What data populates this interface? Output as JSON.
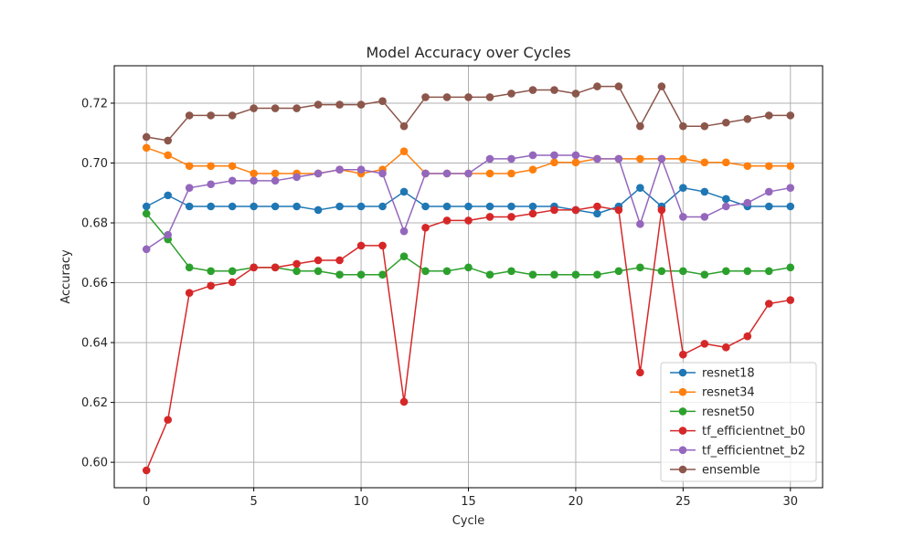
{
  "chart_data": {
    "type": "line",
    "title": "Model Accuracy over Cycles",
    "xlabel": "Cycle",
    "ylabel": "Accuracy",
    "xlim": [
      -1.5,
      31.5
    ],
    "ylim": [
      0.5915,
      0.7325
    ],
    "xticks": [
      0,
      5,
      10,
      15,
      20,
      25,
      30
    ],
    "yticks": [
      0.6,
      0.62,
      0.64,
      0.66,
      0.68,
      0.7,
      0.72
    ],
    "ytick_labels": [
      "0.60",
      "0.62",
      "0.64",
      "0.66",
      "0.68",
      "0.70",
      "0.72"
    ],
    "grid": true,
    "legend_position": "lower-right",
    "x": [
      0,
      1,
      2,
      3,
      4,
      5,
      6,
      7,
      8,
      9,
      10,
      11,
      12,
      13,
      14,
      15,
      16,
      17,
      18,
      19,
      20,
      21,
      22,
      23,
      24,
      25,
      26,
      27,
      28,
      29,
      30
    ],
    "series": [
      {
        "name": "resnet18",
        "color": "#1f77b4",
        "values": [
          0.6855,
          0.6892,
          0.6855,
          0.6855,
          0.6855,
          0.6855,
          0.6855,
          0.6855,
          0.6843,
          0.6855,
          0.6855,
          0.6855,
          0.6904,
          0.6855,
          0.6855,
          0.6855,
          0.6855,
          0.6855,
          0.6855,
          0.6855,
          0.6843,
          0.6831,
          0.6855,
          0.6917,
          0.6855,
          0.6917,
          0.6904,
          0.688,
          0.6855,
          0.6855,
          0.6855
        ]
      },
      {
        "name": "resnet34",
        "color": "#ff7f0e",
        "values": [
          0.7051,
          0.7026,
          0.699,
          0.699,
          0.699,
          0.6965,
          0.6965,
          0.6965,
          0.6965,
          0.6978,
          0.6965,
          0.6978,
          0.7039,
          0.6965,
          0.6965,
          0.6965,
          0.6965,
          0.6965,
          0.6978,
          0.7002,
          0.7002,
          0.7014,
          0.7014,
          0.7014,
          0.7014,
          0.7014,
          0.7002,
          0.7002,
          0.699,
          0.699,
          0.699
        ]
      },
      {
        "name": "resnet50",
        "color": "#2ca02c",
        "values": [
          0.6831,
          0.6745,
          0.6651,
          0.6639,
          0.6639,
          0.6651,
          0.6651,
          0.6639,
          0.6639,
          0.6627,
          0.6627,
          0.6627,
          0.6688,
          0.6639,
          0.6639,
          0.6651,
          0.6627,
          0.6639,
          0.6627,
          0.6627,
          0.6627,
          0.6627,
          0.6639,
          0.6651,
          0.6639,
          0.6639,
          0.6627,
          0.6639,
          0.6639,
          0.6639,
          0.6651
        ]
      },
      {
        "name": "tf_efficientnet_b0",
        "color": "#d62728",
        "values": [
          0.5973,
          0.6142,
          0.6566,
          0.659,
          0.6602,
          0.6651,
          0.6651,
          0.6663,
          0.6675,
          0.6675,
          0.6724,
          0.6724,
          0.6202,
          0.6784,
          0.6808,
          0.6808,
          0.682,
          0.682,
          0.6831,
          0.6843,
          0.6843,
          0.6855,
          0.6843,
          0.63,
          0.6843,
          0.636,
          0.6396,
          0.6384,
          0.6421,
          0.653,
          0.6542
        ]
      },
      {
        "name": "tf_efficientnet_b2",
        "color": "#9467bd",
        "values": [
          0.6712,
          0.676,
          0.6917,
          0.6929,
          0.6941,
          0.6941,
          0.6941,
          0.6953,
          0.6965,
          0.6978,
          0.6978,
          0.6965,
          0.6772,
          0.6965,
          0.6965,
          0.6965,
          0.7014,
          0.7014,
          0.7026,
          0.7026,
          0.7026,
          0.7014,
          0.7014,
          0.6796,
          0.7014,
          0.682,
          0.682,
          0.6855,
          0.6867,
          0.6904,
          0.6917
        ]
      },
      {
        "name": "ensemble",
        "color": "#8c564b",
        "values": [
          0.7087,
          0.7075,
          0.7159,
          0.7159,
          0.7159,
          0.7183,
          0.7183,
          0.7183,
          0.7195,
          0.7195,
          0.7195,
          0.7207,
          0.7123,
          0.722,
          0.722,
          0.722,
          0.722,
          0.7232,
          0.7244,
          0.7244,
          0.7232,
          0.7256,
          0.7256,
          0.7123,
          0.7256,
          0.7123,
          0.7123,
          0.7135,
          0.7147,
          0.7159,
          0.7159
        ]
      }
    ]
  }
}
